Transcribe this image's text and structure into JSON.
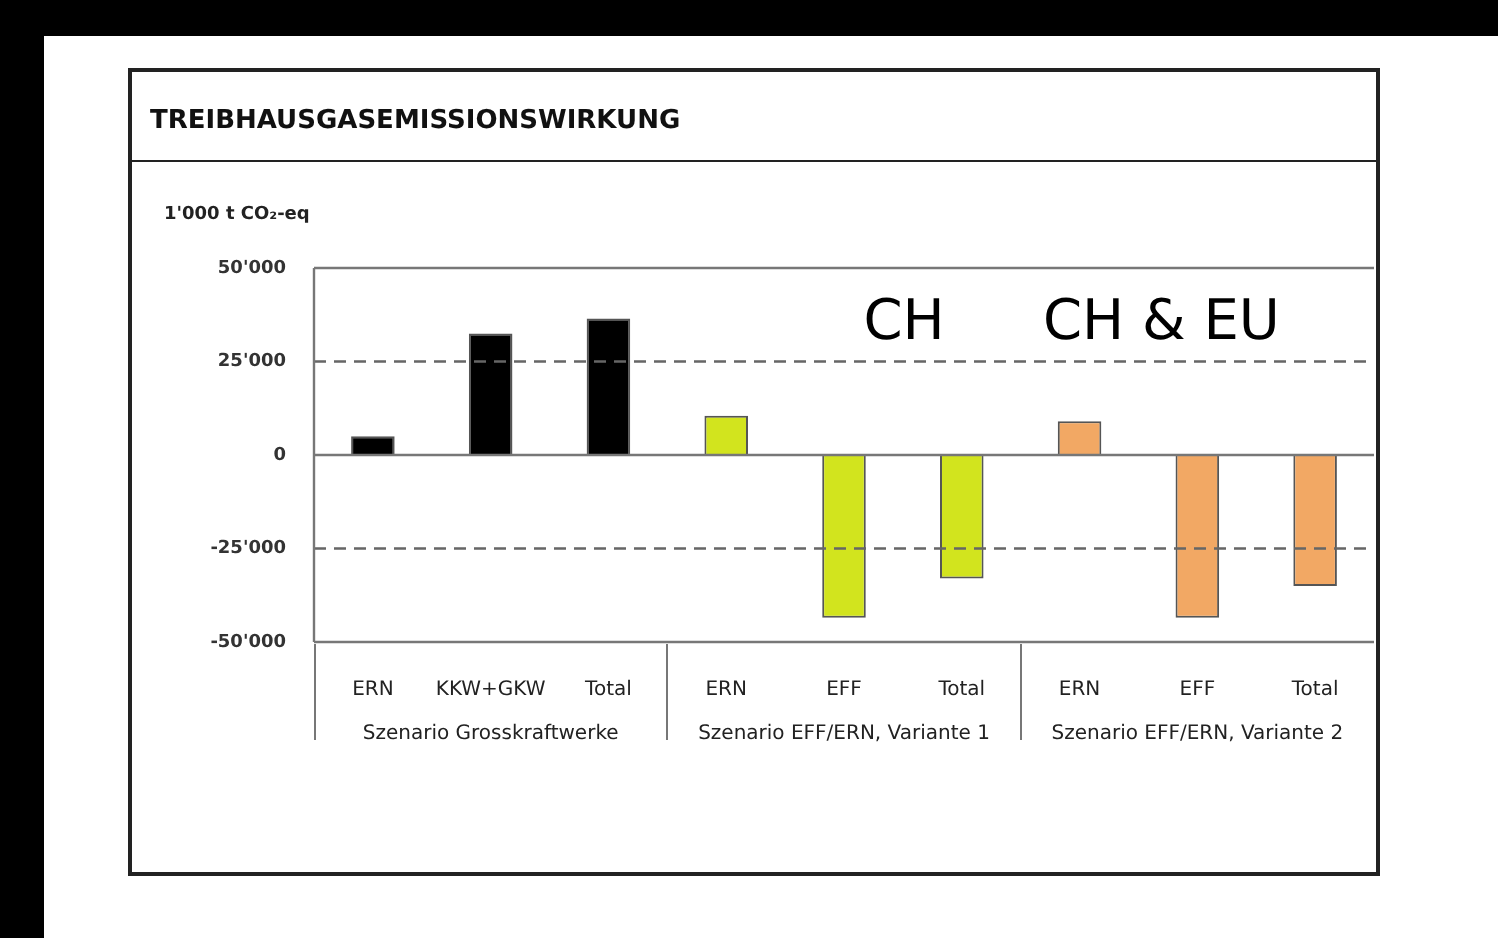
{
  "chart_data": {
    "type": "bar",
    "title": "TREIBHAUSGASEMISSIONSWIRKUNG",
    "ylabel": "1'000 t CO₂-eq",
    "categories": [
      "ERN",
      "KKW+GKW",
      "Total",
      "ERN",
      "EFF",
      "Total",
      "ERN",
      "EFF",
      "Total"
    ],
    "values": [
      5000,
      32500,
      36500,
      10500,
      -43500,
      -33000,
      9000,
      -43500,
      -35000
    ],
    "colors": [
      "#000000",
      "#000000",
      "#000000",
      "#d2e41e",
      "#d2e41e",
      "#d2e41e",
      "#f2a864",
      "#f2a864",
      "#f2a864"
    ],
    "ylim": [
      -50000,
      50000
    ],
    "yticks": [
      {
        "value": -50000,
        "label": "-50'000"
      },
      {
        "value": -25000,
        "label": "-25'000"
      },
      {
        "value": 0,
        "label": "0"
      },
      {
        "value": 25000,
        "label": "25'000"
      },
      {
        "value": 50000,
        "label": "50'000"
      }
    ],
    "ref_lines": [
      {
        "axis": "y",
        "value": 25000,
        "line_style": "dashed",
        "color": "#666666"
      },
      {
        "axis": "y",
        "value": -25000,
        "line_style": "dashed",
        "color": "#666666"
      }
    ],
    "annotations": [
      "CH",
      "CH & EU",
      "Szenario Grosskraftwerke",
      "Szenario EFF/ERN, Variante 1",
      "Szenario EFF/ERN, Variante 2"
    ],
    "legend": false
  }
}
